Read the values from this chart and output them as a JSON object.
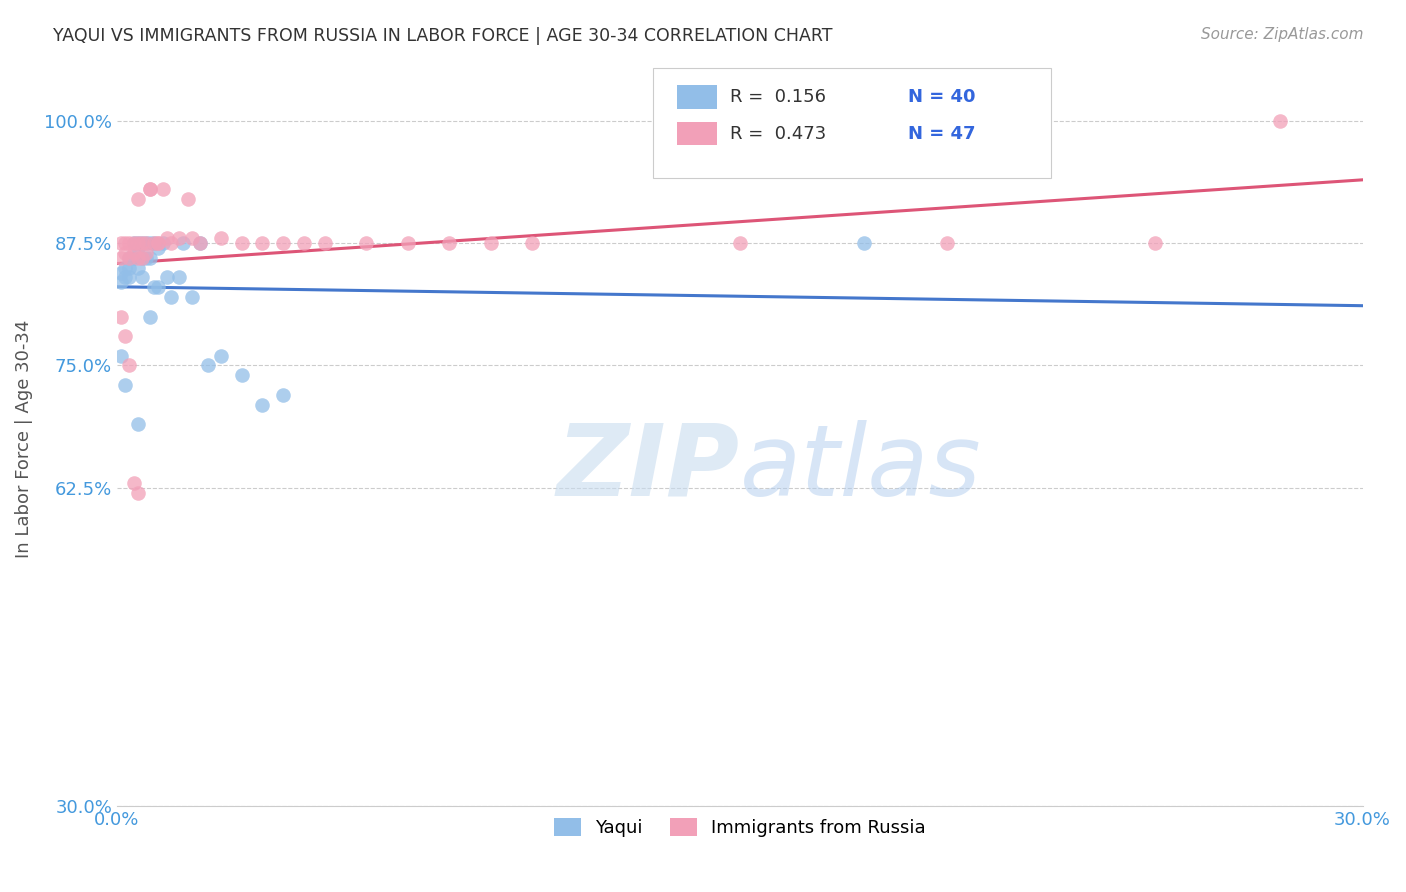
{
  "title": "YAQUI VS IMMIGRANTS FROM RUSSIA IN LABOR FORCE | AGE 30-34 CORRELATION CHART",
  "source": "Source: ZipAtlas.com",
  "ylabel": "In Labor Force | Age 30-34",
  "watermark": "ZIPatlas",
  "legend_bottom": [
    "Yaqui",
    "Immigrants from Russia"
  ],
  "background_color": "#FFFFFF",
  "grid_color": "#CCCCCC",
  "title_color": "#333333",
  "axis_label_color": "#4499DD",
  "yaqui_color": "#92BEE8",
  "russia_color": "#F2A0B8",
  "yaqui_trend_color": "#4477CC",
  "russia_trend_color": "#DD5577",
  "yaqui_N": 40,
  "russia_N": 47,
  "yaqui_R": 0.156,
  "russia_R": 0.473,
  "xlim": [
    0.0,
    0.3
  ],
  "ylim": [
    0.3,
    1.05
  ],
  "y_ticks": [
    0.3,
    0.625,
    0.75,
    0.875,
    1.0
  ],
  "y_tick_labels": [
    "30.0%",
    "62.5%",
    "75.0%",
    "87.5%",
    "100.0%"
  ],
  "x_ticks": [
    0.0,
    0.05,
    0.1,
    0.15,
    0.2,
    0.25,
    0.3
  ],
  "x_tick_labels": [
    "0.0%",
    "",
    "",
    "",
    "",
    "",
    "30.0%"
  ],
  "yaqui_x": [
    0.001,
    0.001,
    0.002,
    0.002,
    0.003,
    0.003,
    0.003,
    0.004,
    0.004,
    0.005,
    0.005,
    0.005,
    0.006,
    0.006,
    0.006,
    0.007,
    0.007,
    0.008,
    0.008,
    0.009,
    0.009,
    0.01,
    0.01,
    0.011,
    0.012,
    0.013,
    0.015,
    0.016,
    0.018,
    0.02,
    0.022,
    0.025,
    0.03,
    0.035,
    0.04,
    0.18,
    0.001,
    0.002,
    0.005,
    0.008
  ],
  "yaqui_y": [
    0.835,
    0.845,
    0.84,
    0.85,
    0.86,
    0.85,
    0.84,
    0.875,
    0.86,
    0.875,
    0.87,
    0.85,
    0.875,
    0.86,
    0.84,
    0.875,
    0.86,
    0.875,
    0.86,
    0.875,
    0.83,
    0.87,
    0.83,
    0.875,
    0.84,
    0.82,
    0.84,
    0.875,
    0.82,
    0.875,
    0.75,
    0.76,
    0.74,
    0.71,
    0.72,
    0.875,
    0.76,
    0.73,
    0.69,
    0.8
  ],
  "russia_x": [
    0.001,
    0.001,
    0.002,
    0.002,
    0.003,
    0.003,
    0.004,
    0.004,
    0.005,
    0.005,
    0.005,
    0.006,
    0.006,
    0.007,
    0.007,
    0.008,
    0.008,
    0.009,
    0.01,
    0.01,
    0.011,
    0.012,
    0.013,
    0.015,
    0.017,
    0.018,
    0.02,
    0.025,
    0.03,
    0.035,
    0.04,
    0.045,
    0.05,
    0.06,
    0.07,
    0.08,
    0.09,
    0.1,
    0.15,
    0.2,
    0.25,
    0.28,
    0.001,
    0.002,
    0.003,
    0.004,
    0.005
  ],
  "russia_y": [
    0.875,
    0.86,
    0.875,
    0.865,
    0.875,
    0.86,
    0.875,
    0.865,
    0.875,
    0.86,
    0.92,
    0.875,
    0.86,
    0.875,
    0.865,
    0.93,
    0.93,
    0.875,
    0.875,
    0.875,
    0.93,
    0.88,
    0.875,
    0.88,
    0.92,
    0.88,
    0.875,
    0.88,
    0.875,
    0.875,
    0.875,
    0.875,
    0.875,
    0.875,
    0.875,
    0.875,
    0.875,
    0.875,
    0.875,
    0.875,
    0.875,
    1.0,
    0.8,
    0.78,
    0.75,
    0.63,
    0.62
  ]
}
